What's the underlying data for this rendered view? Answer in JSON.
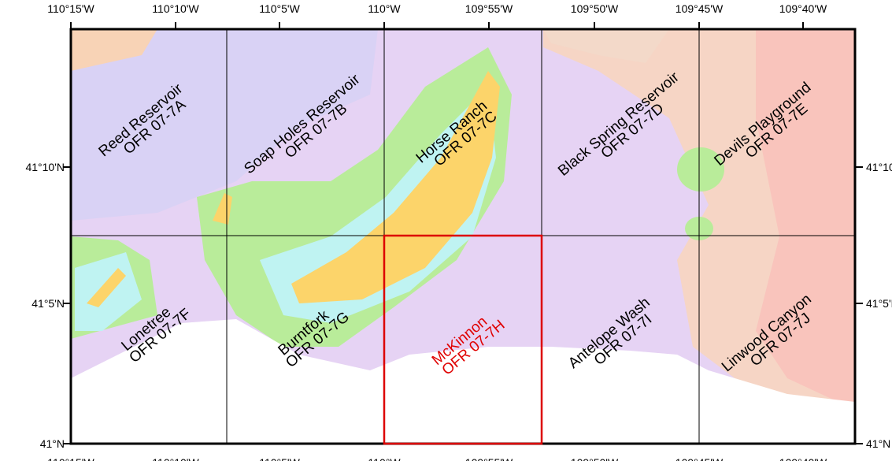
{
  "longitude_labels": [
    "110°15'W",
    "110°10'W",
    "110°5'W",
    "110°W",
    "109°55'W",
    "109°50'W",
    "109°45'W",
    "109°40'W"
  ],
  "latitude_labels": [
    "41°10'N",
    "41°5'N",
    "41°N"
  ],
  "quadrangles": [
    {
      "name": "Reed Reservoir",
      "id": "OFR 07-7A"
    },
    {
      "name": "Soap Holes Reservoir",
      "id": "OFR 07-7B"
    },
    {
      "name": "Horse Ranch",
      "id": "OFR 07-7C"
    },
    {
      "name": "Black Spring Reservoir",
      "id": "OFR 07-7D"
    },
    {
      "name": "Devils Playground",
      "id": "OFR 07-7E"
    },
    {
      "name": "Lonetree",
      "id": "OFR 07-7F"
    },
    {
      "name": "Burntfork",
      "id": "OFR 07-7G"
    },
    {
      "name": "McKinnon",
      "id": "OFR 07-7H"
    },
    {
      "name": "Antelope Wash",
      "id": "OFR 07-7I"
    },
    {
      "name": "Linwood Canyon",
      "id": "OFR 07-7J"
    }
  ]
}
